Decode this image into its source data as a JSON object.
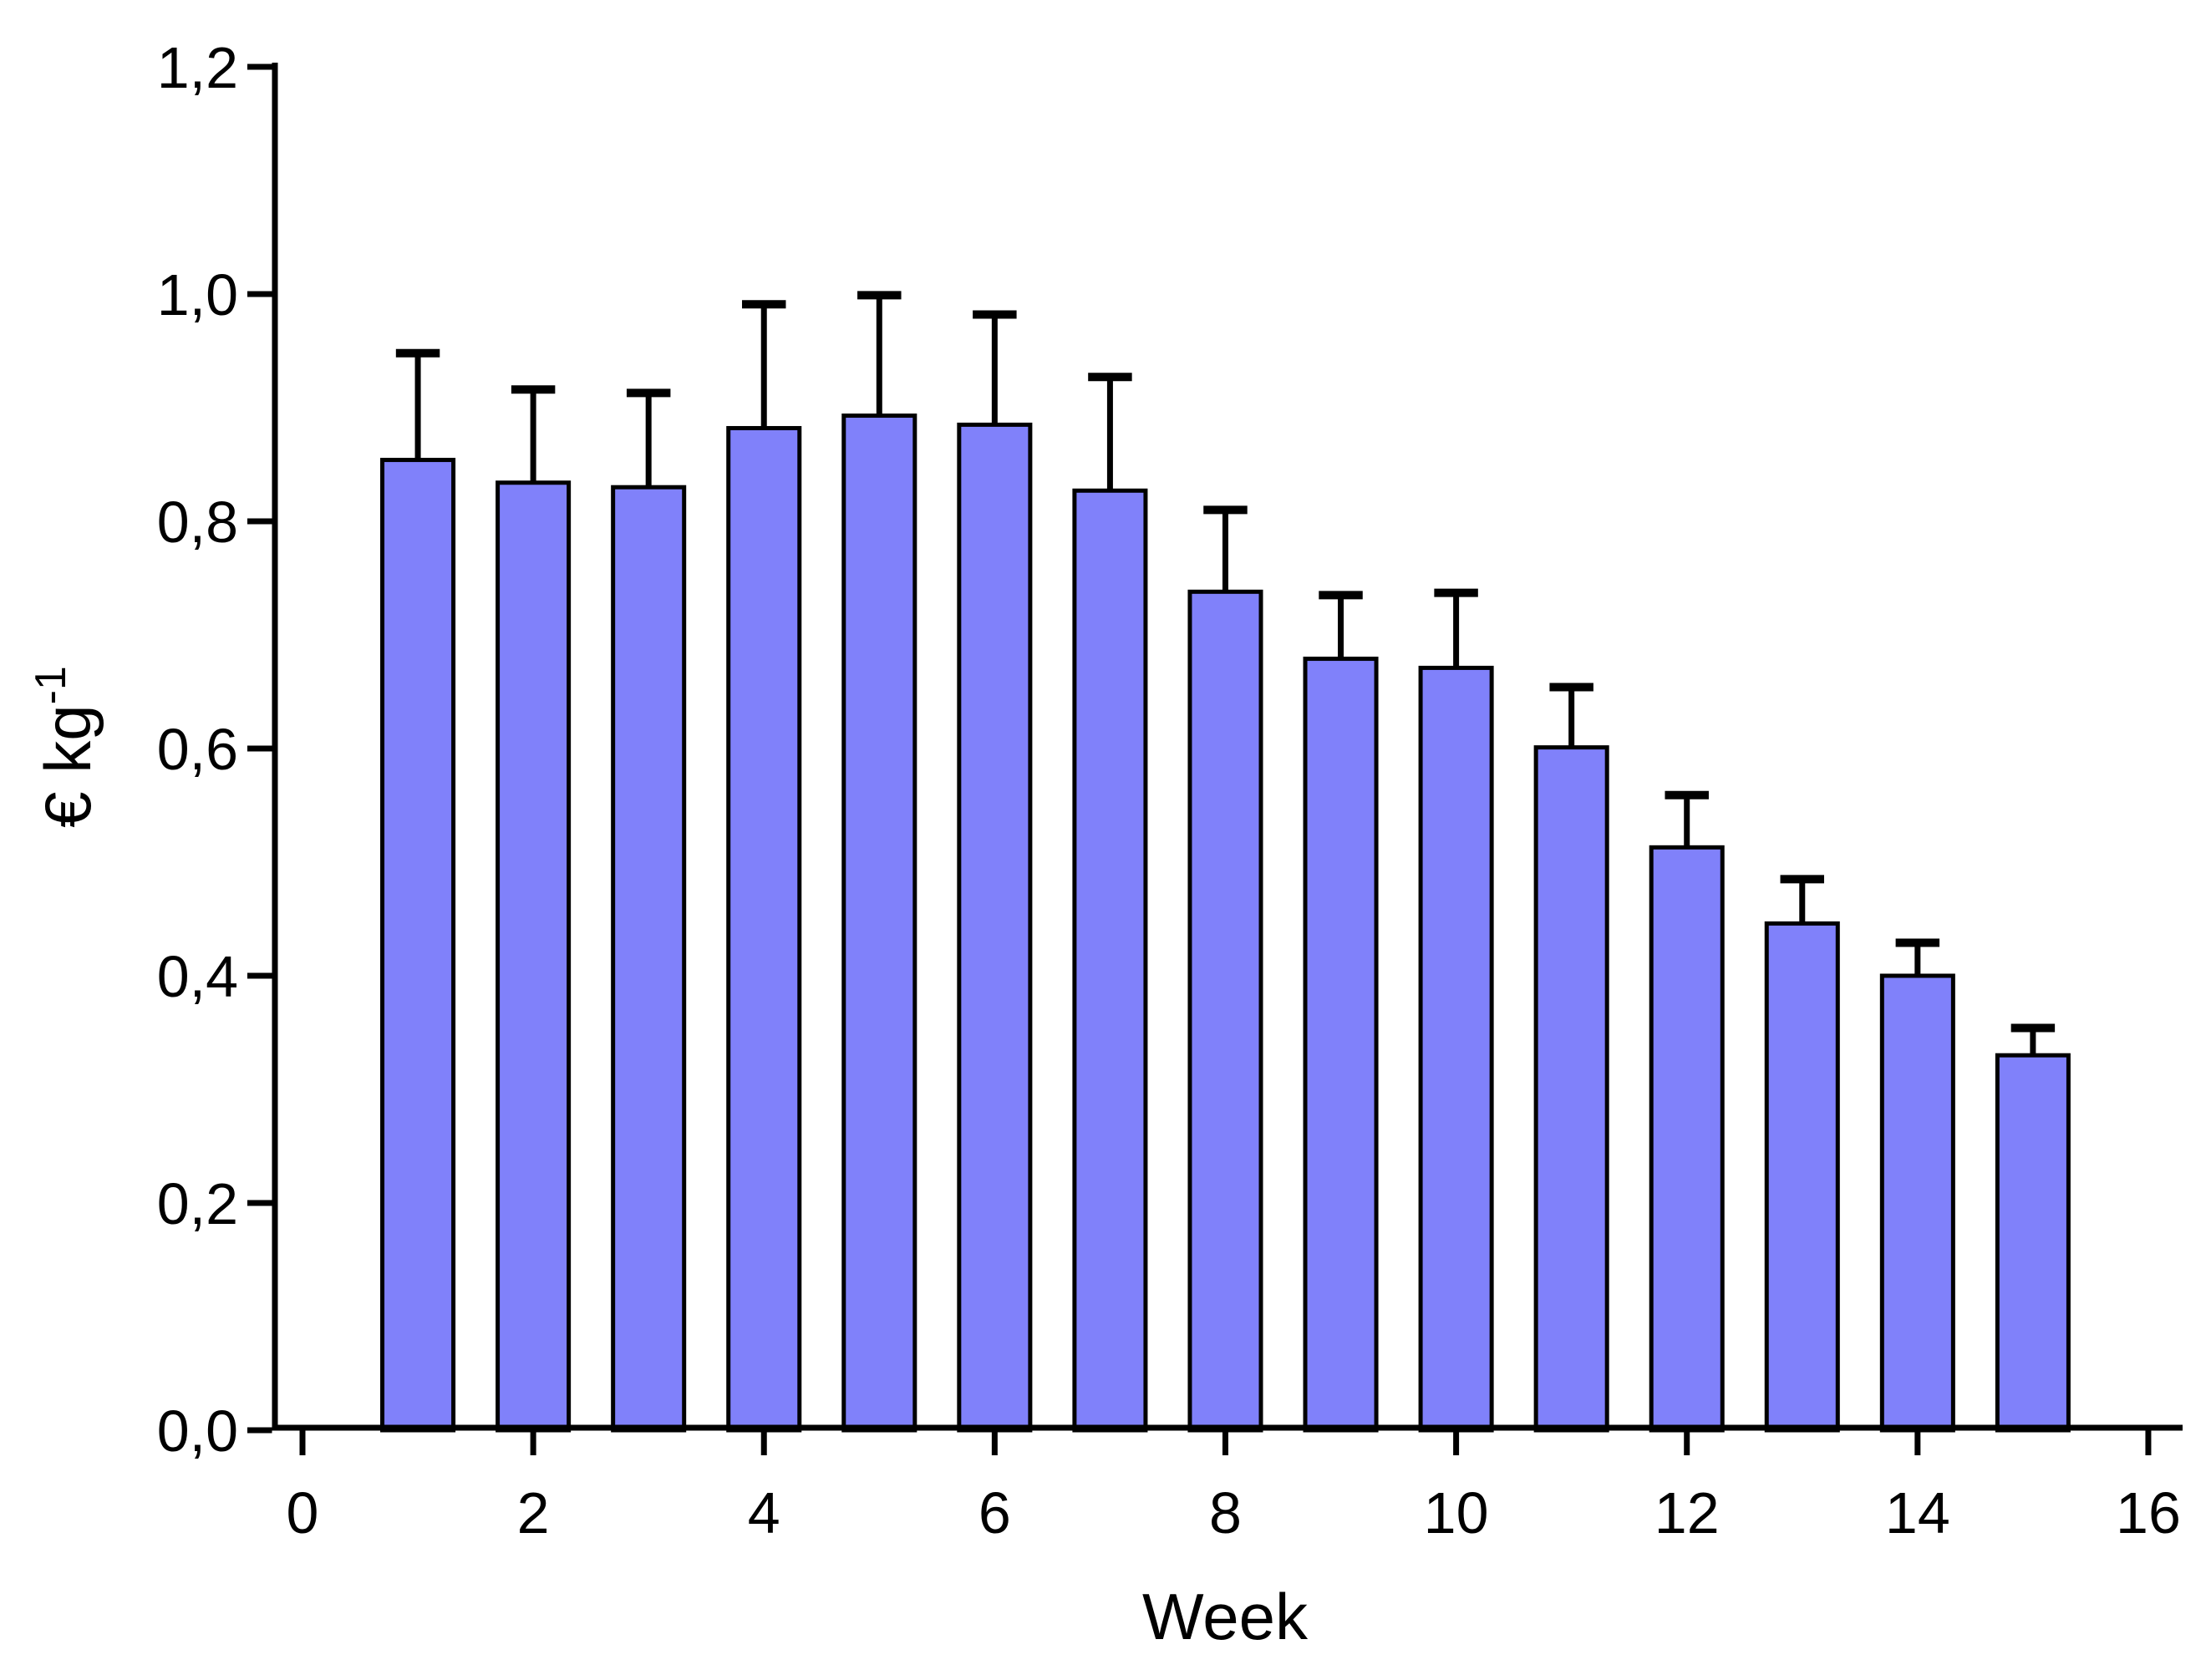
{
  "chart_data": {
    "type": "bar",
    "title": "",
    "xlabel": "Week",
    "ylabel_base": "€ kg",
    "ylabel_exponent": "-1",
    "categories": [
      1,
      2,
      3,
      4,
      5,
      6,
      7,
      8,
      9,
      10,
      11,
      12,
      13,
      14,
      15
    ],
    "values": [
      0.854,
      0.834,
      0.83,
      0.882,
      0.893,
      0.885,
      0.827,
      0.738,
      0.679,
      0.671,
      0.601,
      0.513,
      0.446,
      0.4,
      0.33
    ],
    "errors_up": [
      0.094,
      0.082,
      0.083,
      0.109,
      0.106,
      0.097,
      0.1,
      0.072,
      0.056,
      0.066,
      0.053,
      0.046,
      0.039,
      0.029,
      0.024
    ],
    "xlim": [
      0,
      16
    ],
    "ylim": [
      0.0,
      1.2
    ],
    "xticks": [
      0,
      2,
      4,
      6,
      8,
      10,
      12,
      14,
      16
    ],
    "xtick_labels": [
      "0",
      "2",
      "4",
      "6",
      "8",
      "10",
      "12",
      "14",
      "16"
    ],
    "yticks": [
      0.0,
      0.2,
      0.4,
      0.6,
      0.8,
      1.0,
      1.2
    ],
    "ytick_labels": [
      "0,0",
      "0,2",
      "0,4",
      "0,6",
      "0,8",
      "1,0",
      "1,2"
    ],
    "grid": false,
    "legend": null,
    "bar_color": "#8081FA",
    "bar_edge_color": "#000000",
    "error_bar_color": "#000000",
    "axis_color": "#000000",
    "background_color": "#FFFFFF",
    "bar_width_weeks": 0.616,
    "error_cap_width_weeks": 0.38
  }
}
